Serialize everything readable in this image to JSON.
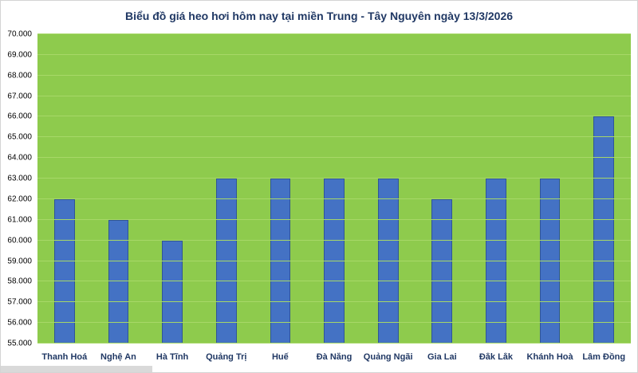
{
  "chart_data": {
    "type": "bar",
    "title": "Biểu đồ giá heo hơi hôm nay tại miền Trung - Tây Nguyên ngày 13/3/2026",
    "categories": [
      "Thanh Hoá",
      "Nghệ An",
      "Hà Tĩnh",
      "Quảng Trị",
      "Huế",
      "Đà Nẵng",
      "Quảng Ngãi",
      "Gia Lai",
      "Đắk Lắk",
      "Khánh Hoà",
      "Lâm Đồng"
    ],
    "values": [
      62000,
      61000,
      60000,
      63000,
      63000,
      63000,
      63000,
      62000,
      63000,
      63000,
      66000
    ],
    "xlabel": "",
    "ylabel": "",
    "ylim": [
      55000,
      70000
    ],
    "ytick_step": 1000,
    "ytick_labels": [
      "55.000",
      "56.000",
      "57.000",
      "58.000",
      "59.000",
      "60.000",
      "61.000",
      "62.000",
      "63.000",
      "64.000",
      "65.000",
      "66.000",
      "67.000",
      "68.000",
      "69.000",
      "70.000"
    ],
    "grid": true,
    "legend_position": "none",
    "colors": {
      "bar_fill": "#4472c4",
      "bar_border": "#2f5597",
      "plot_background": "#8ecb4d",
      "gridline": "#a7d868",
      "title_text": "#203864",
      "category_text": "#203864",
      "ytick_text": "#000000"
    }
  }
}
